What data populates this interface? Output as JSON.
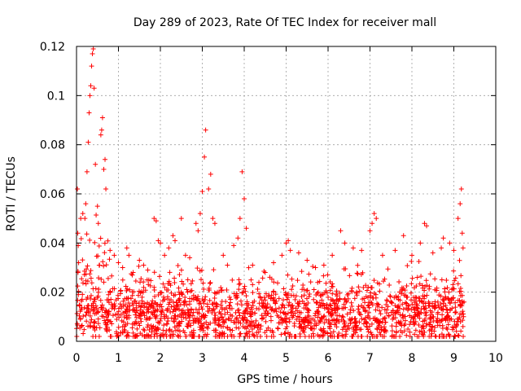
{
  "chart_data": {
    "type": "scatter",
    "title": "Day 289 of 2023, Rate Of TEC Index for receiver mall",
    "xlabel": "GPS time / hours",
    "ylabel": "ROTI / TECUs",
    "xlim": [
      0,
      10
    ],
    "ylim": [
      0,
      0.12
    ],
    "x_ticks": [
      0,
      1,
      2,
      3,
      4,
      5,
      6,
      7,
      8,
      9,
      10
    ],
    "x_tick_labels": [
      "0",
      "1",
      "2",
      "3",
      "4",
      "5",
      "6",
      "7",
      "8",
      "9",
      "10"
    ],
    "y_ticks": [
      0,
      0.02,
      0.04,
      0.06,
      0.08,
      0.1,
      0.12
    ],
    "y_tick_labels": [
      "0",
      "0.02",
      "0.04",
      "0.06",
      "0.08",
      "0.1",
      "0.12"
    ],
    "grid": true,
    "marker": "+",
    "color": "#ff0000",
    "series": [
      {
        "name": "ROTI",
        "points": [
          [
            0.02,
            0.062
          ],
          [
            0.03,
            0.044
          ],
          [
            0.05,
            0.032
          ],
          [
            0.1,
            0.05
          ],
          [
            0.15,
            0.052
          ],
          [
            0.2,
            0.05
          ],
          [
            0.22,
            0.056
          ],
          [
            0.25,
            0.069
          ],
          [
            0.28,
            0.081
          ],
          [
            0.3,
            0.093
          ],
          [
            0.32,
            0.1
          ],
          [
            0.34,
            0.104
          ],
          [
            0.36,
            0.112
          ],
          [
            0.38,
            0.117
          ],
          [
            0.4,
            0.119
          ],
          [
            0.42,
            0.103
          ],
          [
            0.45,
            0.072
          ],
          [
            0.5,
            0.055
          ],
          [
            0.52,
            0.048
          ],
          [
            0.55,
            0.031
          ],
          [
            0.58,
            0.084
          ],
          [
            0.6,
            0.086
          ],
          [
            0.62,
            0.091
          ],
          [
            0.65,
            0.07
          ],
          [
            0.68,
            0.074
          ],
          [
            0.7,
            0.062
          ],
          [
            0.8,
            0.037
          ],
          [
            0.9,
            0.035
          ],
          [
            1.0,
            0.032
          ],
          [
            1.1,
            0.03
          ],
          [
            1.2,
            0.038
          ],
          [
            1.25,
            0.035
          ],
          [
            1.35,
            0.028
          ],
          [
            1.5,
            0.033
          ],
          [
            1.6,
            0.031
          ],
          [
            1.7,
            0.029
          ],
          [
            1.85,
            0.05
          ],
          [
            1.9,
            0.049
          ],
          [
            1.95,
            0.041
          ],
          [
            2.0,
            0.04
          ],
          [
            2.1,
            0.035
          ],
          [
            2.2,
            0.038
          ],
          [
            2.3,
            0.043
          ],
          [
            2.35,
            0.041
          ],
          [
            2.5,
            0.05
          ],
          [
            2.6,
            0.035
          ],
          [
            2.7,
            0.034
          ],
          [
            2.85,
            0.048
          ],
          [
            2.9,
            0.045
          ],
          [
            2.95,
            0.052
          ],
          [
            3.0,
            0.061
          ],
          [
            3.05,
            0.075
          ],
          [
            3.08,
            0.086
          ],
          [
            3.15,
            0.062
          ],
          [
            3.2,
            0.068
          ],
          [
            3.25,
            0.05
          ],
          [
            3.3,
            0.048
          ],
          [
            3.5,
            0.035
          ],
          [
            3.6,
            0.031
          ],
          [
            3.75,
            0.039
          ],
          [
            3.85,
            0.042
          ],
          [
            3.9,
            0.05
          ],
          [
            3.95,
            0.069
          ],
          [
            4.0,
            0.058
          ],
          [
            4.05,
            0.046
          ],
          [
            4.2,
            0.031
          ],
          [
            4.35,
            0.024
          ],
          [
            4.5,
            0.028
          ],
          [
            4.7,
            0.032
          ],
          [
            4.9,
            0.035
          ],
          [
            5.0,
            0.04
          ],
          [
            5.05,
            0.041
          ],
          [
            5.1,
            0.037
          ],
          [
            5.3,
            0.036
          ],
          [
            5.5,
            0.033
          ],
          [
            5.7,
            0.03
          ],
          [
            5.9,
            0.031
          ],
          [
            6.1,
            0.035
          ],
          [
            6.3,
            0.045
          ],
          [
            6.4,
            0.04
          ],
          [
            6.6,
            0.038
          ],
          [
            6.8,
            0.037
          ],
          [
            7.0,
            0.045
          ],
          [
            7.05,
            0.048
          ],
          [
            7.1,
            0.052
          ],
          [
            7.15,
            0.05
          ],
          [
            7.3,
            0.035
          ],
          [
            7.6,
            0.037
          ],
          [
            7.8,
            0.043
          ],
          [
            8.0,
            0.035
          ],
          [
            8.2,
            0.04
          ],
          [
            8.3,
            0.048
          ],
          [
            8.35,
            0.047
          ],
          [
            8.5,
            0.036
          ],
          [
            8.7,
            0.038
          ],
          [
            8.75,
            0.042
          ],
          [
            8.9,
            0.04
          ],
          [
            9.0,
            0.037
          ],
          [
            9.1,
            0.05
          ],
          [
            9.15,
            0.056
          ],
          [
            9.18,
            0.062
          ],
          [
            9.2,
            0.044
          ],
          [
            9.22,
            0.038
          ]
        ]
      }
    ],
    "noise_band": {
      "x_range": [
        0,
        9.25
      ],
      "typical_range": [
        0.002,
        0.025
      ],
      "mean": 0.01,
      "count": 1800
    }
  }
}
